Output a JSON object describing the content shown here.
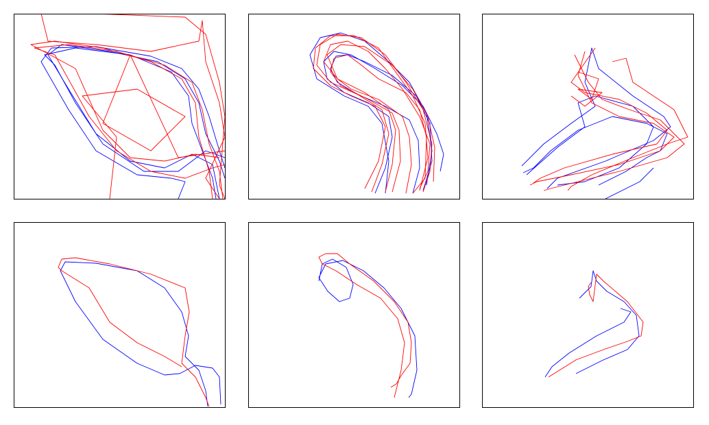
{
  "chart_data": [
    {
      "type": "line",
      "xlim": [
        0,
        308
      ],
      "ylim": [
        270,
        0
      ],
      "series": [
        {
          "color": "#0000ff",
          "x": [
            300,
            290,
            260,
            220,
            170,
            120,
            80,
            50,
            70,
            140,
            210,
            250,
            270,
            280,
            300,
            308
          ],
          "values": [
            270,
            220,
            205,
            225,
            215,
            175,
            110,
            60,
            45,
            55,
            70,
            95,
            130,
            175,
            215,
            240
          ]
        },
        {
          "color": "#0000ff",
          "x": [
            308,
            280,
            240,
            190,
            130,
            90,
            60,
            45,
            90,
            170,
            230,
            255,
            260,
            275,
            290,
            295
          ],
          "values": [
            210,
            200,
            230,
            230,
            190,
            130,
            75,
            60,
            50,
            60,
            85,
            120,
            160,
            200,
            240,
            270
          ]
        },
        {
          "color": "#0000ff",
          "x": [
            240,
            250,
            230,
            180,
            120,
            80,
            40,
            55,
            120,
            200,
            245,
            270,
            285,
            300,
            308
          ],
          "values": [
            270,
            245,
            240,
            235,
            200,
            140,
            70,
            50,
            48,
            62,
            80,
            110,
            150,
            200,
            225
          ]
        },
        {
          "color": "#ff0000",
          "x": [
            305,
            300,
            285,
            275,
            260,
            220,
            150,
            80,
            30,
            60,
            110,
            150,
            200,
            250,
            290,
            308
          ],
          "values": [
            270,
            230,
            190,
            140,
            100,
            75,
            55,
            45,
            50,
            60,
            150,
            200,
            230,
            240,
            225,
            220
          ]
        },
        {
          "color": "#ff0000",
          "x": [
            290,
            285,
            270,
            265,
            245,
            200,
            130,
            60,
            25,
            90,
            130,
            170,
            220,
            265,
            300
          ],
          "values": [
            270,
            230,
            180,
            130,
            95,
            70,
            50,
            40,
            45,
            80,
            170,
            210,
            215,
            205,
            210
          ]
        },
        {
          "color": "#ff0000",
          "x": [
            40,
            50,
            120,
            200,
            270,
            275,
            280,
            300,
            308,
            280,
            300
          ],
          "values": [
            0,
            40,
            45,
            55,
            40,
            10,
            70,
            130,
            180,
            240,
            270
          ]
        },
        {
          "color": "#ff0000",
          "x": [
            140,
            150,
            100,
            180,
            250,
            200,
            130,
            170,
            240,
            308
          ],
          "values": [
            270,
            180,
            120,
            110,
            150,
            200,
            160,
            60,
            210,
            200
          ]
        },
        {
          "color": "#ff0000",
          "x": [
            118,
            250,
            280,
            300,
            308,
            300,
            308
          ],
          "values": [
            0,
            5,
            30,
            100,
            150,
            250,
            270
          ]
        }
      ]
    },
    {
      "type": "line",
      "xlim": [
        0,
        308
      ],
      "ylim": [
        270,
        0
      ],
      "series": [
        {
          "color": "#0000ff",
          "x": [
            185,
            200,
            210,
            205,
            175,
            140,
            115,
            110,
            125,
            150,
            185,
            225,
            255,
            275,
            285,
            280
          ],
          "values": [
            262,
            225,
            180,
            150,
            130,
            115,
            95,
            70,
            55,
            60,
            80,
            105,
            135,
            175,
            205,
            230
          ]
        },
        {
          "color": "#0000ff",
          "x": [
            200,
            205,
            195,
            175,
            140,
            100,
            90,
            105,
            135,
            170,
            205,
            235,
            260,
            268,
            260
          ],
          "values": [
            262,
            215,
            160,
            135,
            120,
            95,
            60,
            35,
            28,
            40,
            70,
            100,
            145,
            200,
            250
          ]
        },
        {
          "color": "#0000ff",
          "x": [
            240,
            250,
            248,
            235,
            200,
            160,
            130,
            120,
            128,
            145,
            170,
            210,
            245,
            265,
            268,
            255
          ],
          "values": [
            262,
            225,
            185,
            155,
            135,
            118,
            100,
            80,
            62,
            60,
            70,
            90,
            120,
            160,
            215,
            258
          ]
        },
        {
          "color": "#ff0000",
          "x": [
            180,
            195,
            205,
            195,
            160,
            120,
            100,
            105,
            130,
            165,
            200,
            230,
            255,
            268,
            265,
            255
          ],
          "values": [
            260,
            220,
            175,
            140,
            118,
            100,
            75,
            45,
            30,
            35,
            60,
            100,
            140,
            190,
            230,
            260
          ]
        },
        {
          "color": "#ff0000",
          "x": [
            170,
            190,
            200,
            185,
            150,
            120,
            95,
            98,
            120,
            155,
            190,
            215,
            240,
            258,
            262,
            250
          ],
          "values": [
            255,
            215,
            165,
            135,
            120,
            105,
            80,
            50,
            32,
            32,
            50,
            85,
            120,
            160,
            210,
            258
          ]
        },
        {
          "color": "#ff0000",
          "x": [
            210,
            222,
            220,
            210,
            175,
            135,
            120,
            125,
            145,
            165,
            190,
            230,
            250,
            260,
            258,
            240
          ],
          "values": [
            260,
            215,
            170,
            145,
            125,
            105,
            85,
            65,
            60,
            75,
            95,
            115,
            140,
            180,
            240,
            262
          ]
        },
        {
          "color": "#ff0000",
          "x": [
            230,
            238,
            235,
            225,
            190,
            150,
            130,
            115,
            135,
            170,
            210,
            240,
            262,
            272,
            270
          ],
          "values": [
            262,
            220,
            180,
            150,
            125,
            110,
            95,
            60,
            45,
            48,
            75,
            110,
            150,
            195,
            245
          ]
        },
        {
          "color": "#ff0000",
          "x": [
            200,
            210,
            215,
            205,
            170,
            130,
            110,
            120,
            145,
            175,
            200,
            225,
            250,
            265,
            262,
            250
          ],
          "values": [
            260,
            220,
            170,
            140,
            115,
            95,
            70,
            45,
            40,
            55,
            80,
            110,
            150,
            190,
            230,
            255
          ]
        }
      ]
    },
    {
      "type": "line",
      "xlim": [
        0,
        308
      ],
      "ylim": [
        270,
        0
      ],
      "series": [
        {
          "color": "#0000ff",
          "x": [
            58,
            90,
            130,
            165,
            150,
            160,
            170,
            220,
            265,
            275,
            250,
            180,
            110,
            95
          ],
          "values": [
            222,
            190,
            160,
            135,
            100,
            50,
            80,
            120,
            150,
            165,
            185,
            215,
            240,
            255
          ]
        },
        {
          "color": "#0000ff",
          "x": [
            65,
            110,
            150,
            140,
            165,
            220,
            250,
            240,
            200,
            150,
            110
          ],
          "values": [
            235,
            195,
            165,
            130,
            120,
            135,
            165,
            190,
            225,
            245,
            250
          ]
        },
        {
          "color": "#0000ff",
          "x": [
            170,
            210,
            240,
            260,
            270,
            240,
            190,
            140,
            100,
            75,
            60
          ],
          "values": [
            250,
            230,
            210,
            200,
            175,
            160,
            150,
            170,
            200,
            225,
            232
          ]
        },
        {
          "color": "#0000ff",
          "x": [
            180,
            230,
            250
          ],
          "values": [
            270,
            245,
            225
          ]
        },
        {
          "color": "#ff0000",
          "x": [
            150,
            140,
            160,
            200,
            250,
            280,
            260,
            200,
            130,
            80,
            70
          ],
          "values": [
            55,
            90,
            130,
            150,
            160,
            180,
            200,
            220,
            235,
            245,
            250
          ]
        },
        {
          "color": "#ff0000",
          "x": [
            135,
            155,
            175,
            215,
            260,
            295,
            270,
            200,
            140,
            100,
            90
          ],
          "values": [
            60,
            100,
            125,
            140,
            155,
            190,
            210,
            230,
            245,
            255,
            258
          ]
        },
        {
          "color": "#ff0000",
          "x": [
            165,
            130,
            150,
            200,
            240,
            270,
            255,
            190,
            120,
            85,
            75
          ],
          "values": [
            50,
            100,
            115,
            125,
            145,
            170,
            190,
            205,
            225,
            240,
            247
          ]
        },
        {
          "color": "#ff0000",
          "x": [
            190,
            210,
            220,
            250,
            280,
            300,
            270,
            220,
            160,
            130,
            125
          ],
          "values": [
            70,
            65,
            100,
            120,
            140,
            180,
            190,
            210,
            235,
            252,
            258
          ]
        },
        {
          "color": "#ff0000",
          "x": [
            140,
            170,
            160,
            140,
            175,
            150,
            130
          ],
          "values": [
            85,
            95,
            125,
            110,
            115,
            135,
            120
          ]
        }
      ]
    },
    {
      "type": "line",
      "xlim": [
        0,
        308
      ],
      "ylim": [
        270,
        0
      ],
      "series": [
        {
          "color": "#0000ff",
          "x": [
            302,
            300,
            290,
            265,
            242,
            220,
            180,
            130,
            90,
            68,
            75,
            120,
            180,
            220,
            245,
            255,
            250,
            270,
            280,
            283
          ],
          "values": [
            266,
            226,
            213,
            209,
            221,
            223,
            206,
            171,
            116,
            71,
            58,
            60,
            71,
            96,
            131,
            166,
            196,
            216,
            246,
            269
          ]
        },
        {
          "color": "#ff0000",
          "x": [
            245,
            220,
            180,
            140,
            110,
            70,
            65,
            70,
            90,
            140,
            200,
            250,
            256,
            250,
            245,
            265,
            280,
            285
          ],
          "values": [
            211,
            196,
            176,
            146,
            96,
            71,
            66,
            54,
            52,
            61,
            76,
            96,
            131,
            166,
            206,
            226,
            256,
            269
          ]
        }
      ]
    },
    {
      "type": "line",
      "xlim": [
        0,
        308
      ],
      "ylim": [
        270,
        0
      ],
      "series": [
        {
          "color": "#0000ff",
          "x": [
            103,
            108,
            123,
            143,
            153,
            148,
            133,
            116,
            103,
            113,
            138,
            168,
            198,
            223,
            243,
            246,
            238,
            234
          ],
          "values": [
            86,
            61,
            54,
            66,
            91,
            111,
            116,
            101,
            81,
            61,
            56,
            71,
            96,
            126,
            166,
            216,
            251,
            256
          ]
        },
        {
          "color": "#ff0000",
          "x": [
            213,
            223,
            228,
            218,
            193,
            158,
            128,
            108,
            103,
            113,
            130,
            148,
            183,
            213,
            233,
            238,
            236,
            223,
            216,
            208
          ],
          "values": [
            256,
            216,
            176,
            141,
            111,
            91,
            71,
            61,
            51,
            46,
            46,
            61,
            86,
            116,
            146,
            176,
            206,
            224,
            236,
            241
          ]
        }
      ]
    },
    {
      "type": "line",
      "xlim": [
        0,
        308
      ],
      "ylim": [
        270,
        0
      ],
      "series": [
        {
          "color": "#0000ff",
          "x": [
            142,
            152,
            159,
            162,
            167,
            182,
            207,
            225,
            229,
            212,
            177,
            137
          ],
          "values": [
            111,
            101,
            94,
            71,
            86,
            101,
            116,
            136,
            166,
            186,
            201,
            221
          ]
        },
        {
          "color": "#0000ff",
          "x": [
            202,
            217,
            207,
            167,
            127,
            102,
            92
          ],
          "values": [
            126,
            131,
            146,
            166,
            191,
            211,
            226
          ]
        },
        {
          "color": "#ff0000",
          "x": [
            97,
            137,
            177,
            212,
            232,
            235,
            212,
            177,
            167,
            162,
            157,
            155,
            159
          ],
          "values": [
            226,
            201,
            186,
            174,
            166,
            146,
            116,
            86,
            76,
            116,
            106,
            94,
            88
          ]
        }
      ]
    }
  ]
}
